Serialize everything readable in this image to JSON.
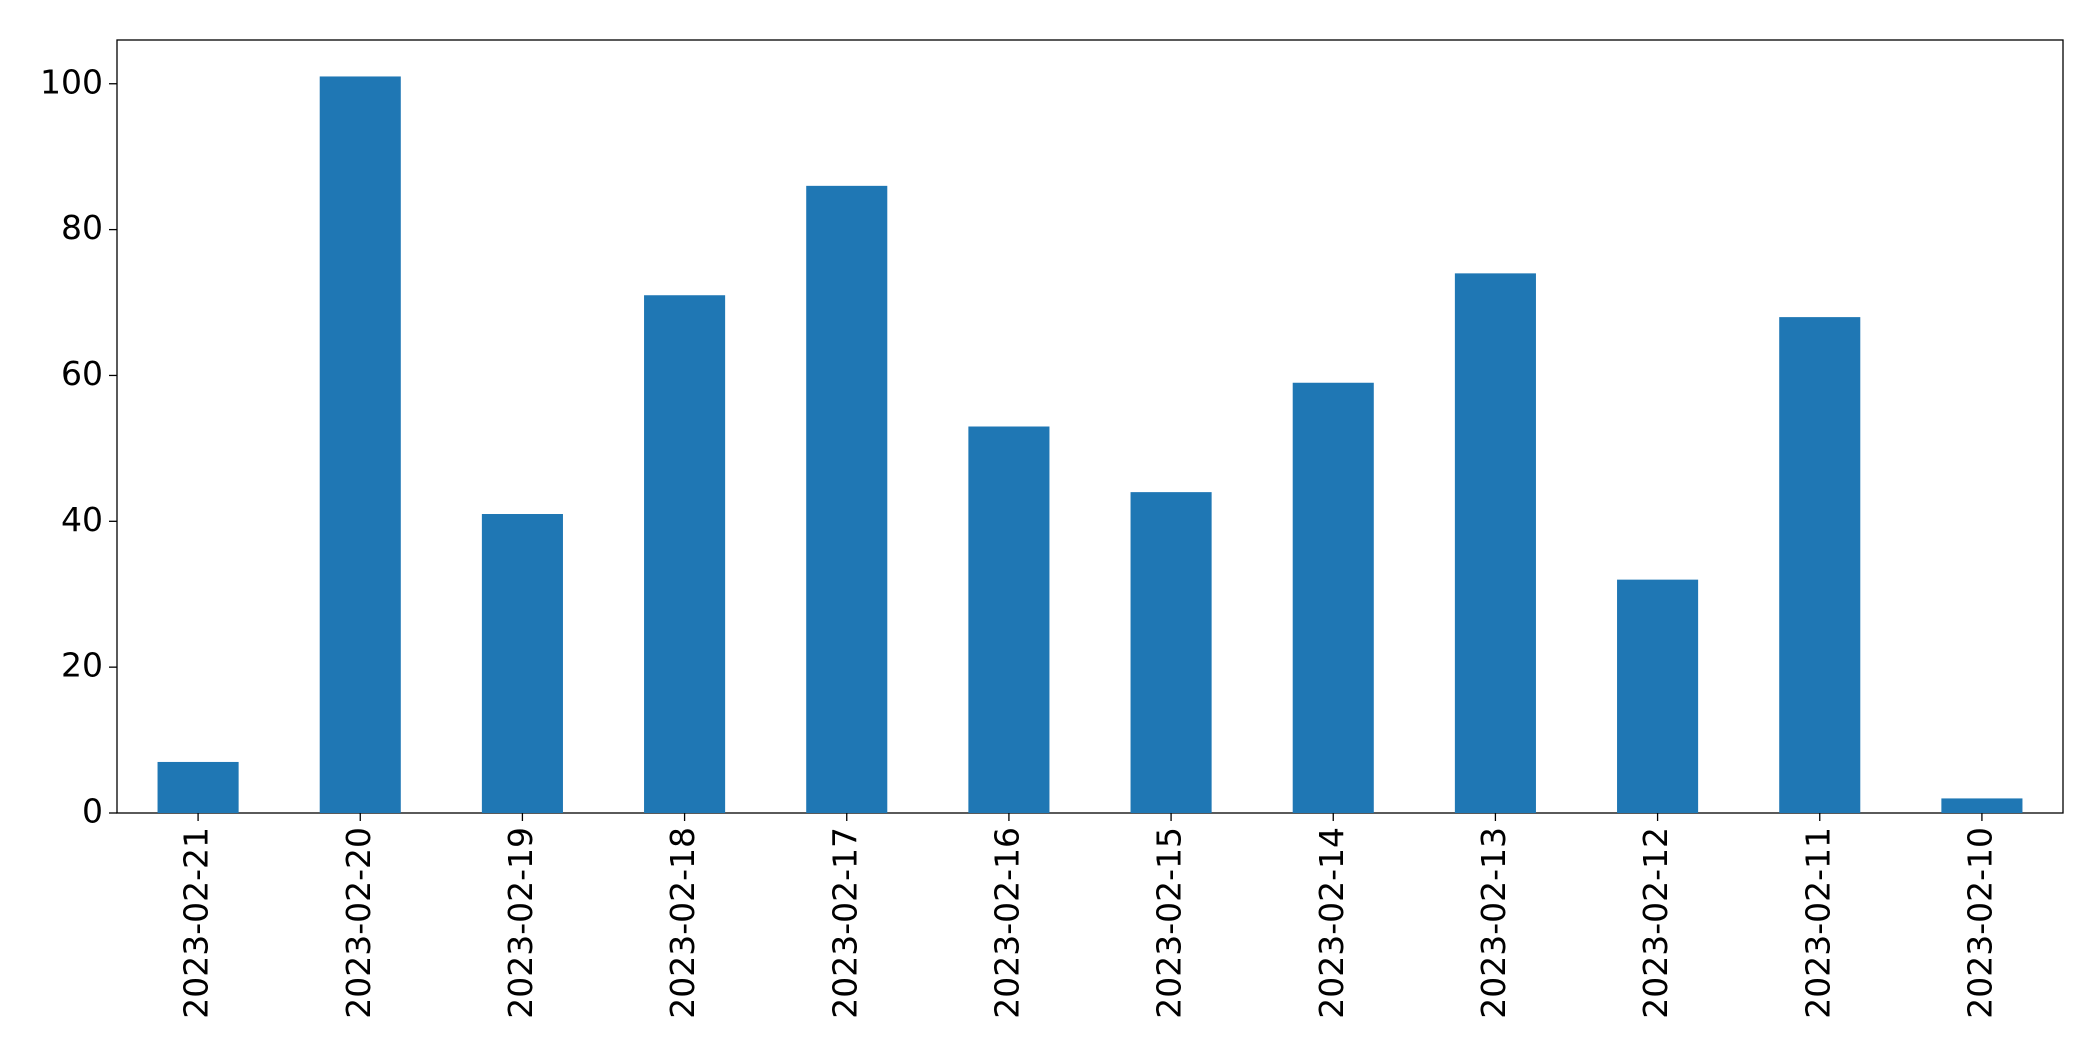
{
  "chart_data": {
    "type": "bar",
    "categories": [
      "2023-02-21",
      "2023-02-20",
      "2023-02-19",
      "2023-02-18",
      "2023-02-17",
      "2023-02-16",
      "2023-02-15",
      "2023-02-14",
      "2023-02-13",
      "2023-02-12",
      "2023-02-11",
      "2023-02-10"
    ],
    "values": [
      7,
      101,
      41,
      71,
      86,
      53,
      44,
      59,
      74,
      32,
      68,
      2
    ],
    "color": "#1f77b4",
    "ylim": [
      0,
      106
    ],
    "yticks": [
      0,
      20,
      40,
      60,
      80,
      100
    ],
    "grid": false
  }
}
